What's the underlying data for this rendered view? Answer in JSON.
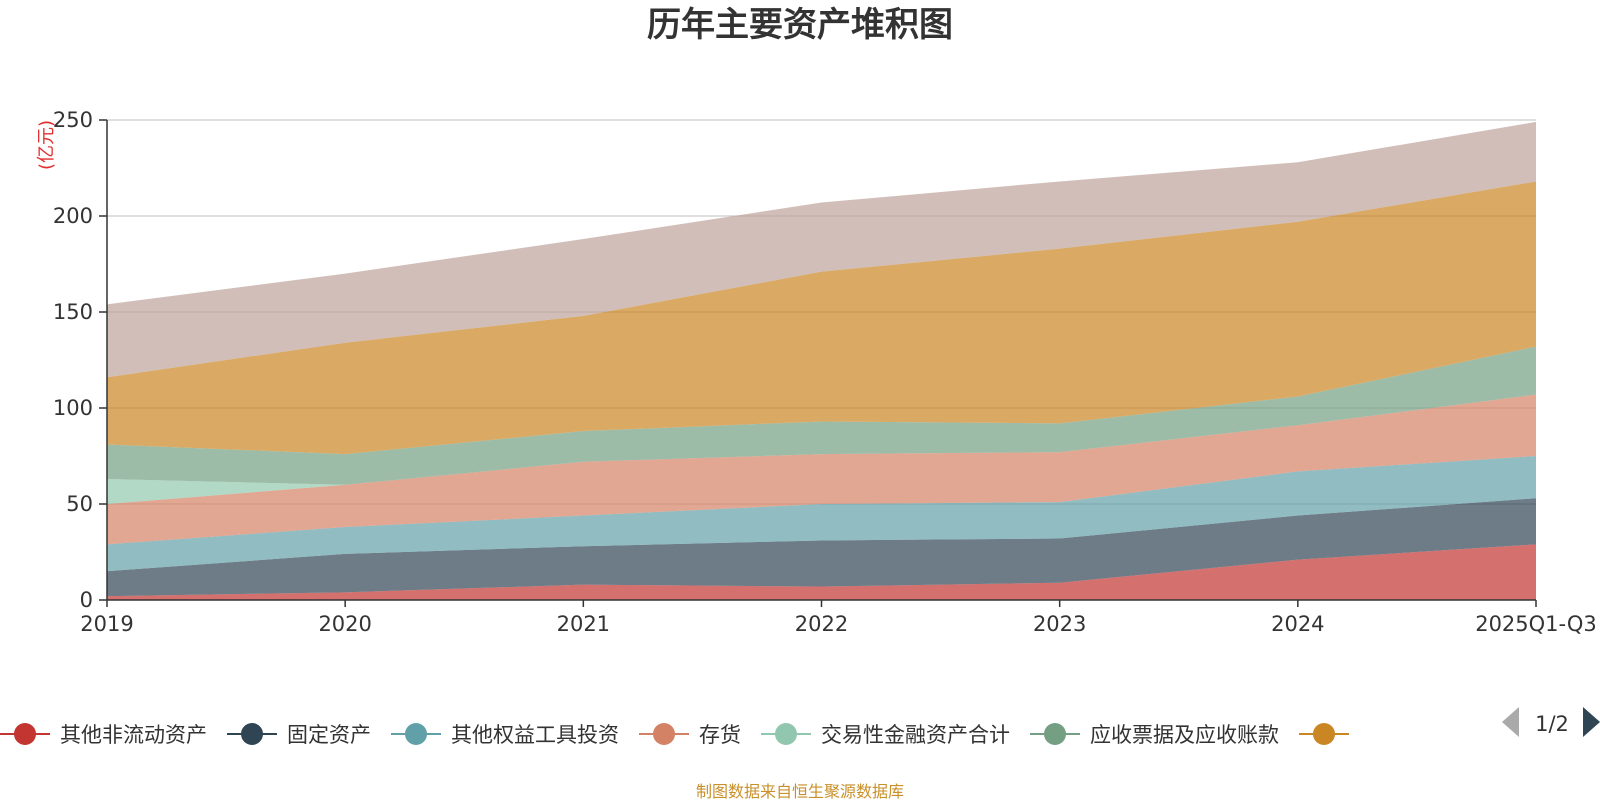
{
  "chart_data": {
    "type": "area",
    "stacked": true,
    "title": "历年主要资产堆积图",
    "unit_label": "(亿元)",
    "categories": [
      "2019",
      "2020",
      "2021",
      "2022",
      "2023",
      "2024",
      "2025Q1-Q3"
    ],
    "ylim": [
      0,
      250
    ],
    "yticks": [
      0,
      50,
      100,
      150,
      200,
      250
    ],
    "grid": true,
    "series": [
      {
        "name": "其他非流动资产",
        "color": "#c23531",
        "values": [
          2,
          4,
          8,
          7,
          9,
          21,
          29
        ]
      },
      {
        "name": "固定资产",
        "color": "#2f4554",
        "values": [
          13,
          20,
          20,
          24,
          23,
          23,
          24
        ]
      },
      {
        "name": "其他权益工具投资",
        "color": "#61a0a8",
        "values": [
          14,
          14,
          16,
          19,
          19,
          23,
          22
        ]
      },
      {
        "name": "存货",
        "color": "#d48265",
        "values": [
          21,
          22,
          28,
          26,
          26,
          24,
          32
        ]
      },
      {
        "name": "交易性金融资产合计",
        "color": "#91c7ae",
        "values": [
          13,
          0,
          0,
          0,
          0,
          0,
          0
        ]
      },
      {
        "name": "应收票据及应收账款",
        "color": "#749f83",
        "values": [
          18,
          16,
          16,
          17,
          15,
          15,
          25
        ]
      },
      {
        "name": "",
        "color": "#ca8622",
        "values": [
          35,
          58,
          60,
          78,
          91,
          91,
          86
        ]
      },
      {
        "name": "",
        "color": "#bda29a",
        "values": [
          38,
          36,
          40,
          36,
          35,
          31,
          31
        ]
      }
    ],
    "legend": {
      "placement": "bottom",
      "page": "1/2",
      "visible_items": [
        {
          "name": "其他非流动资产",
          "color": "#c23531"
        },
        {
          "name": "固定资产",
          "color": "#2f4554"
        },
        {
          "name": "其他权益工具投资",
          "color": "#61a0a8"
        },
        {
          "name": "存货",
          "color": "#d48265"
        },
        {
          "name": "交易性金融资产合计",
          "color": "#91c7ae"
        },
        {
          "name": "应收票据及应收账款",
          "color": "#749f83"
        },
        {
          "name": "",
          "color": "#ca8622"
        }
      ]
    },
    "source": "制图数据来自恒生聚源数据库"
  }
}
